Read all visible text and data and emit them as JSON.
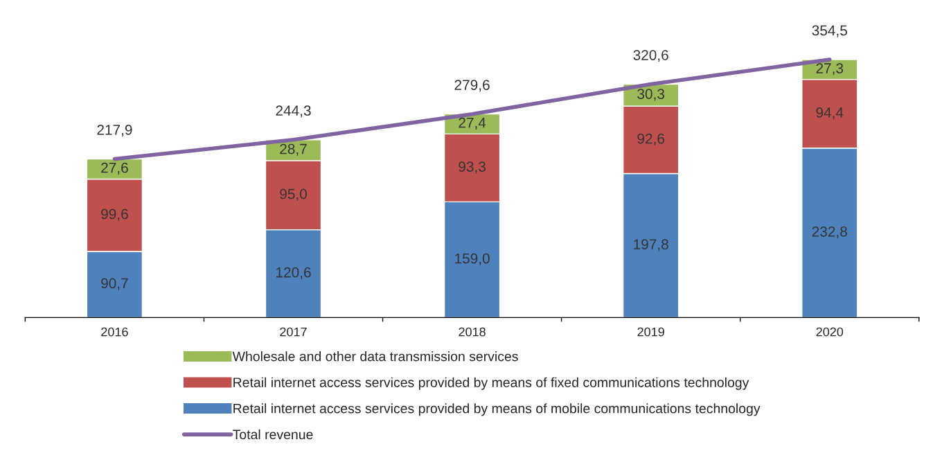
{
  "chart_data": {
    "type": "bar",
    "stacked": true,
    "categories": [
      "2016",
      "2017",
      "2018",
      "2019",
      "2020"
    ],
    "legend": "bottom",
    "series": [
      {
        "name": "Retail internet access services provided by means of mobile communications technology",
        "color": "#4f81bd",
        "values": [
          90.7,
          120.6,
          159.0,
          197.8,
          232.8
        ],
        "value_labels": [
          "90,7",
          "120,6",
          "159,0",
          "197,8",
          "232,8"
        ]
      },
      {
        "name": "Retail internet access services provided by means of fixed communications technology",
        "color": "#c0504d",
        "values": [
          99.6,
          95.0,
          93.3,
          92.6,
          94.4
        ],
        "value_labels": [
          "99,6",
          "95,0",
          "93,3",
          "92,6",
          "94,4"
        ]
      },
      {
        "name": "Wholesale and other data transmission services",
        "color": "#9bbb59",
        "values": [
          27.6,
          28.7,
          27.4,
          30.3,
          27.3
        ],
        "value_labels": [
          "27,6",
          "28,7",
          "27,4",
          "30,3",
          "27,3"
        ]
      },
      {
        "name": "Total revenue",
        "type": "line",
        "color": "#8064a2",
        "values": [
          217.9,
          244.3,
          279.6,
          320.6,
          354.5
        ],
        "value_labels": [
          "217,9",
          "244,3",
          "279,6",
          "320,6",
          "354,5"
        ]
      }
    ]
  }
}
